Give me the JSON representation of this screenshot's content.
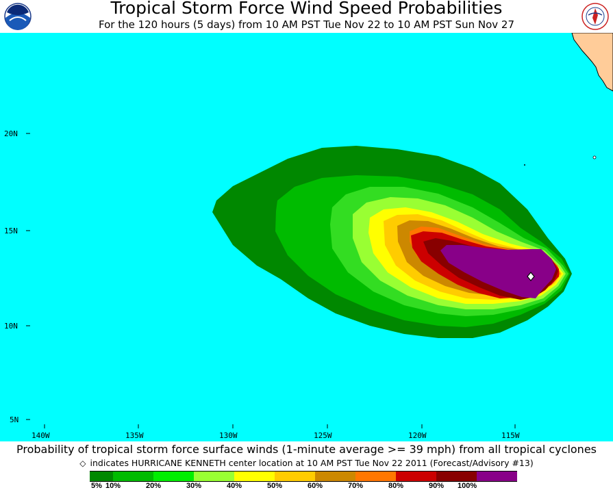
{
  "header": {
    "title": "Tropical Storm Force Wind Speed Probabilities",
    "subtitle": "For the 120 hours (5 days) from 10 AM PST Tue Nov 22 to 10 AM PST Sun Nov 27",
    "left_logo_text": "NOAA",
    "right_logo_text": "NATIONAL WEATHER SERVICE"
  },
  "map": {
    "ocean_color": "#00ffff",
    "land_color": "#ffcc99",
    "lat_labels": [
      "20N",
      "15N",
      "10N",
      "5N"
    ],
    "lon_labels": [
      "140W",
      "135W",
      "130W",
      "125W",
      "120W",
      "115W"
    ],
    "storm_marker": "diamond"
  },
  "footer": {
    "line1": "Probability of tropical storm force surface winds (1-minute average >= 39 mph) from all tropical cyclones",
    "line2": "indicates HURRICANE KENNETH center location at 10 AM PST Tue Nov 22 2011 (Forecast/Advisory #13)",
    "legend": {
      "labels": [
        "5%",
        "10%",
        "20%",
        "30%",
        "40%",
        "50%",
        "60%",
        "70%",
        "80%",
        "90%",
        "100%"
      ],
      "colors": [
        "#008800",
        "#00bb00",
        "#00ee00",
        "#99ff33",
        "#ffff00",
        "#ffcc00",
        "#cc8800",
        "#ff7700",
        "#cc0000",
        "#880000",
        "#880088"
      ]
    }
  }
}
